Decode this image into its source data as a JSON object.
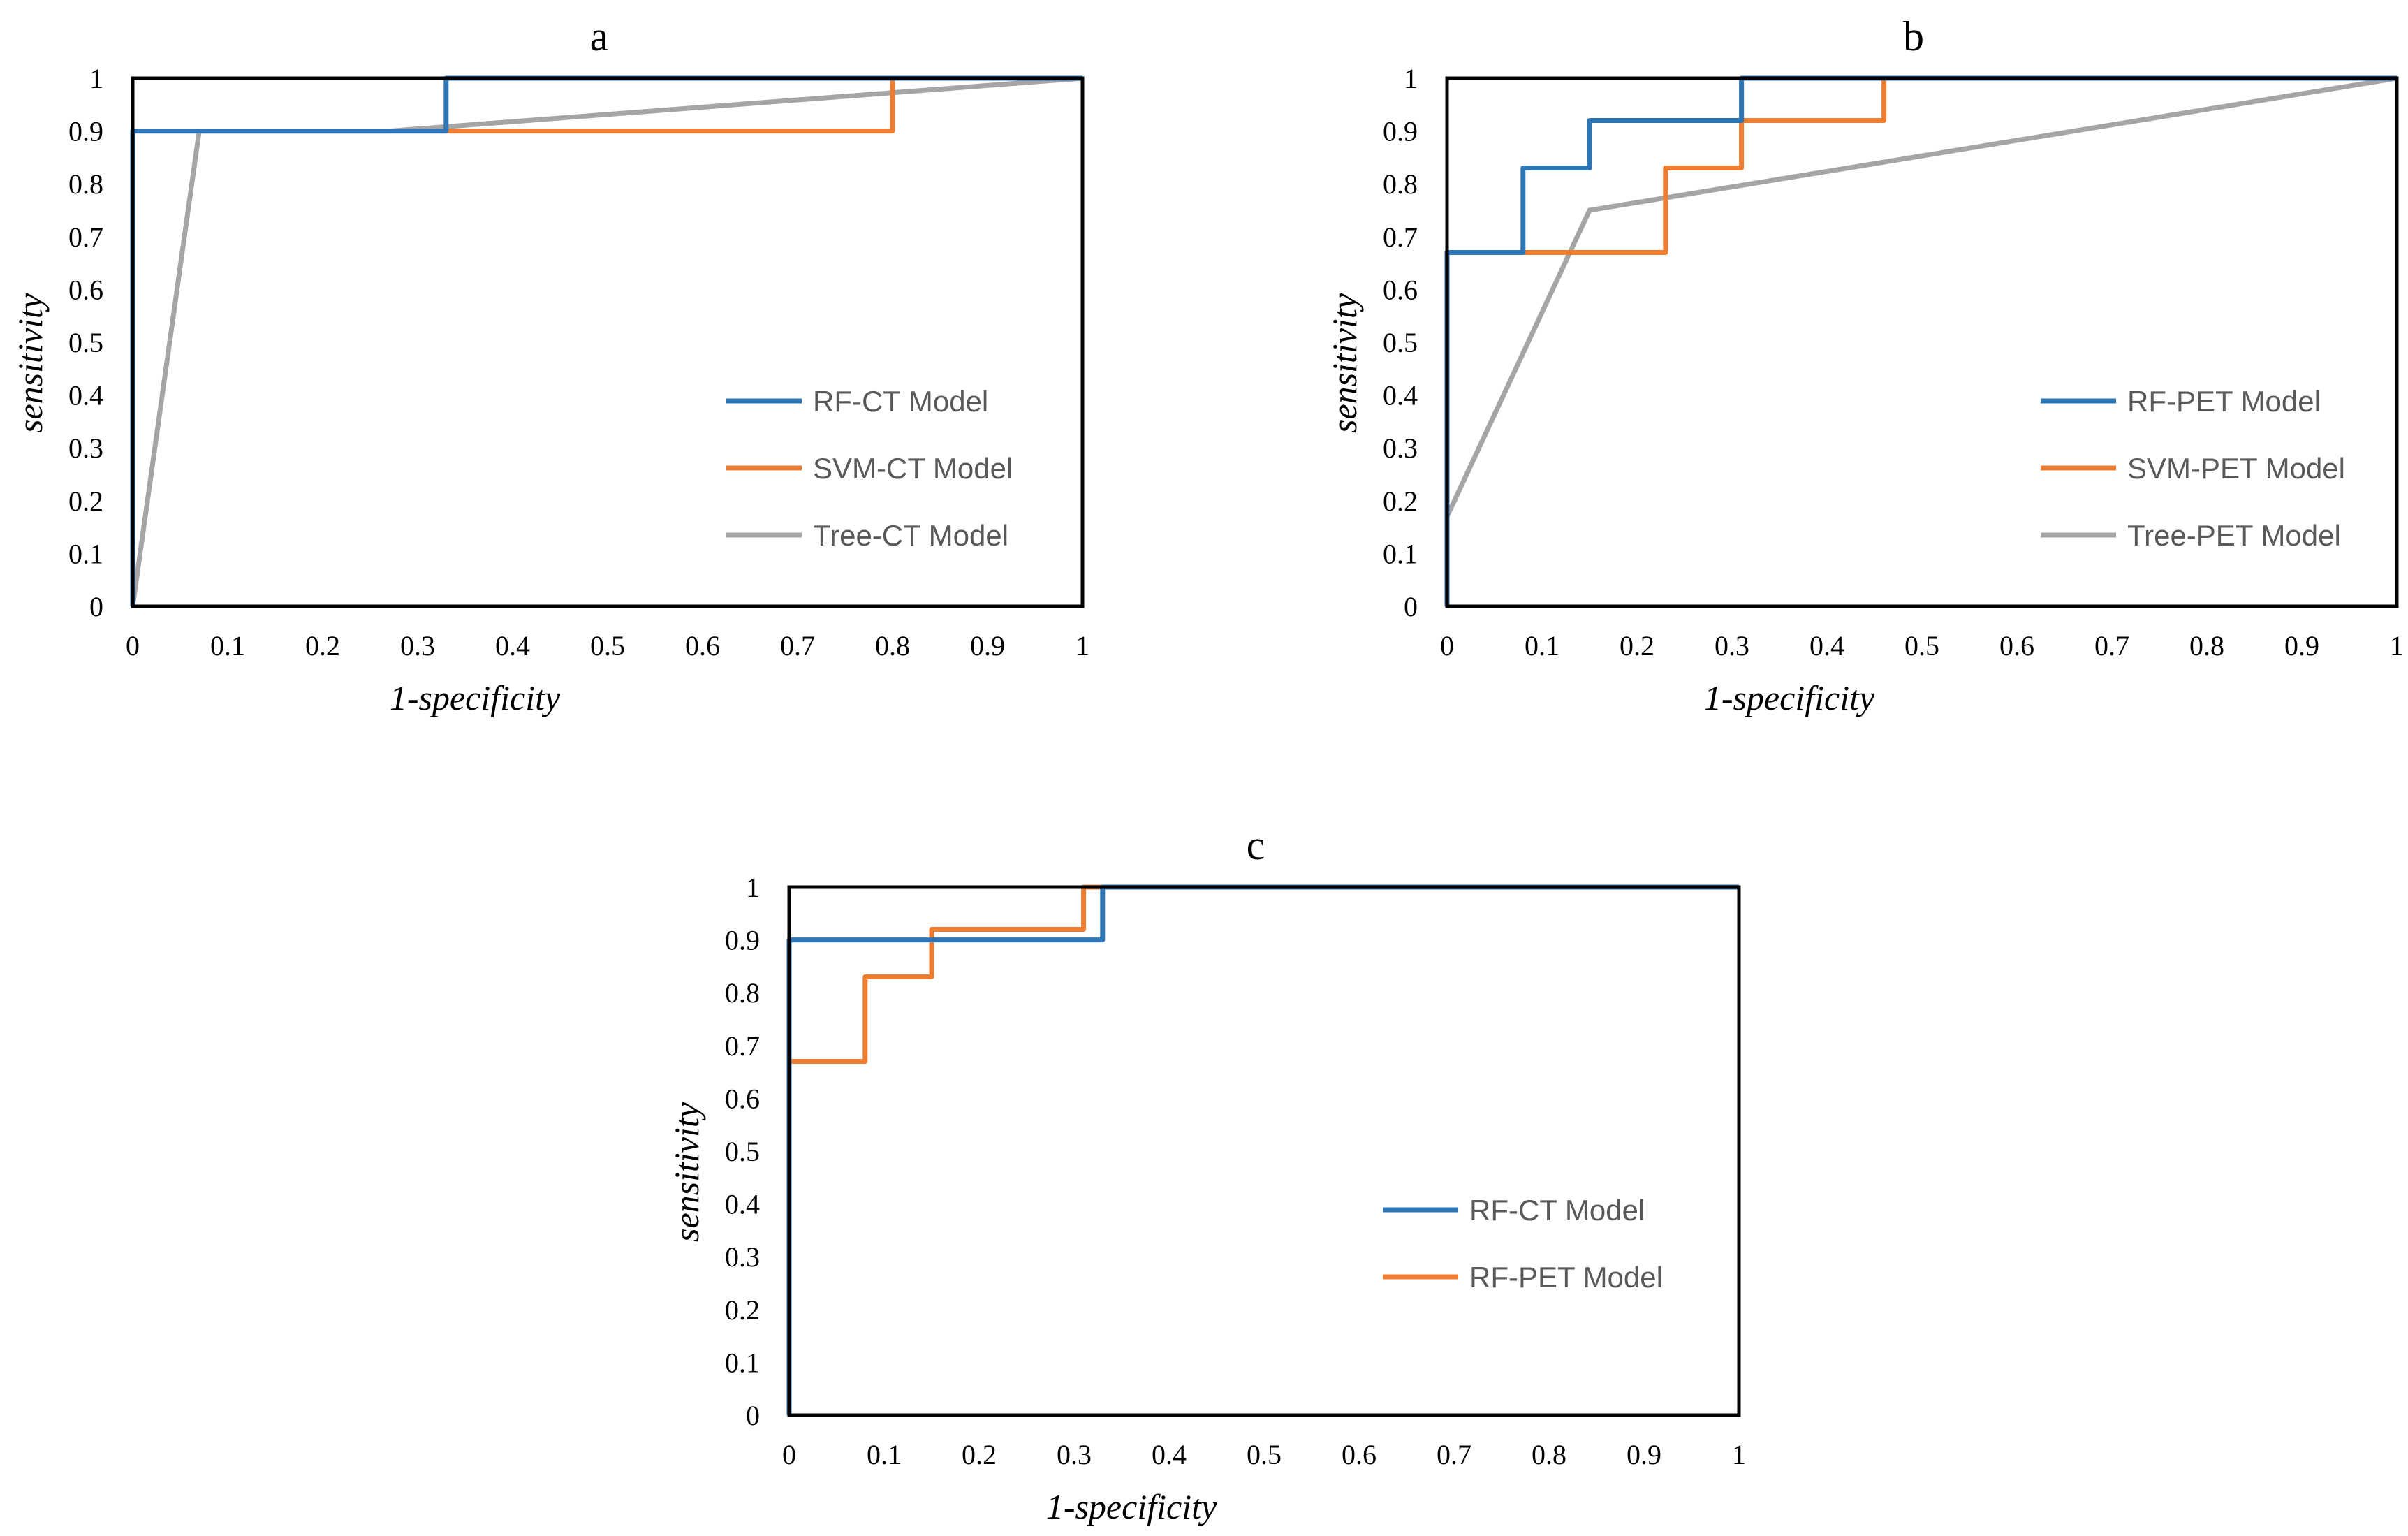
{
  "chart_data": [
    {
      "panel": "a",
      "type": "line",
      "title": "a",
      "xlabel": "1-specificity",
      "ylabel": "sensitivity",
      "xlim": [
        0,
        1
      ],
      "ylim": [
        0,
        1
      ],
      "ticks": [
        "0",
        "0.1",
        "0.2",
        "0.3",
        "0.4",
        "0.5",
        "0.6",
        "0.7",
        "0.8",
        "0.9",
        "1"
      ],
      "grid": false,
      "legend_position": "bottom-right",
      "series": [
        {
          "name": "RF-CT Model",
          "color": "#2e75b6",
          "x": [
            0,
            0,
            0.33,
            0.33,
            1
          ],
          "y": [
            0,
            0.9,
            0.9,
            1,
            1
          ]
        },
        {
          "name": "SVM-CT Model",
          "color": "#ed7d31",
          "x": [
            0,
            0,
            0.8,
            0.8,
            1
          ],
          "y": [
            0,
            0.9,
            0.9,
            1,
            1
          ]
        },
        {
          "name": "Tree-CT Model",
          "color": "#a5a5a5",
          "x": [
            0,
            0.07,
            0.27,
            1
          ],
          "y": [
            0,
            0.9,
            0.9,
            1
          ]
        }
      ]
    },
    {
      "panel": "b",
      "type": "line",
      "title": "b",
      "xlabel": "1-specificity",
      "ylabel": "sensitivity",
      "xlim": [
        0,
        1
      ],
      "ylim": [
        0,
        1
      ],
      "ticks": [
        "0",
        "0.1",
        "0.2",
        "0.3",
        "0.4",
        "0.5",
        "0.6",
        "0.7",
        "0.8",
        "0.9",
        "1"
      ],
      "grid": false,
      "legend_position": "bottom-right",
      "series": [
        {
          "name": "RF-PET Model",
          "color": "#2e75b6",
          "x": [
            0,
            0,
            0.08,
            0.08,
            0.15,
            0.15,
            0.31,
            0.31,
            1
          ],
          "y": [
            0,
            0.67,
            0.67,
            0.83,
            0.83,
            0.92,
            0.92,
            1,
            1
          ]
        },
        {
          "name": "SVM-PET Model",
          "color": "#ed7d31",
          "x": [
            0,
            0,
            0.23,
            0.23,
            0.31,
            0.31,
            0.46,
            0.46,
            1
          ],
          "y": [
            0,
            0.67,
            0.67,
            0.83,
            0.83,
            0.92,
            0.92,
            1,
            1
          ]
        },
        {
          "name": "Tree-PET Model",
          "color": "#a5a5a5",
          "x": [
            0,
            0,
            0.15,
            1
          ],
          "y": [
            0,
            0.17,
            0.75,
            1
          ]
        }
      ]
    },
    {
      "panel": "c",
      "type": "line",
      "title": "c",
      "xlabel": "1-specificity",
      "ylabel": "sensitivity",
      "xlim": [
        0,
        1
      ],
      "ylim": [
        0,
        1
      ],
      "ticks": [
        "0",
        "0.1",
        "0.2",
        "0.3",
        "0.4",
        "0.5",
        "0.6",
        "0.7",
        "0.8",
        "0.9",
        "1"
      ],
      "grid": false,
      "legend_position": "bottom-right",
      "series": [
        {
          "name": "RF-CT Model",
          "color": "#2e75b6",
          "x": [
            0,
            0,
            0.33,
            0.33,
            1
          ],
          "y": [
            0,
            0.9,
            0.9,
            1,
            1
          ]
        },
        {
          "name": "RF-PET Model",
          "color": "#ed7d31",
          "x": [
            0,
            0,
            0.08,
            0.08,
            0.15,
            0.15,
            0.31,
            0.31,
            1
          ],
          "y": [
            0,
            0.67,
            0.67,
            0.83,
            0.83,
            0.92,
            0.92,
            1,
            1
          ]
        }
      ]
    }
  ]
}
